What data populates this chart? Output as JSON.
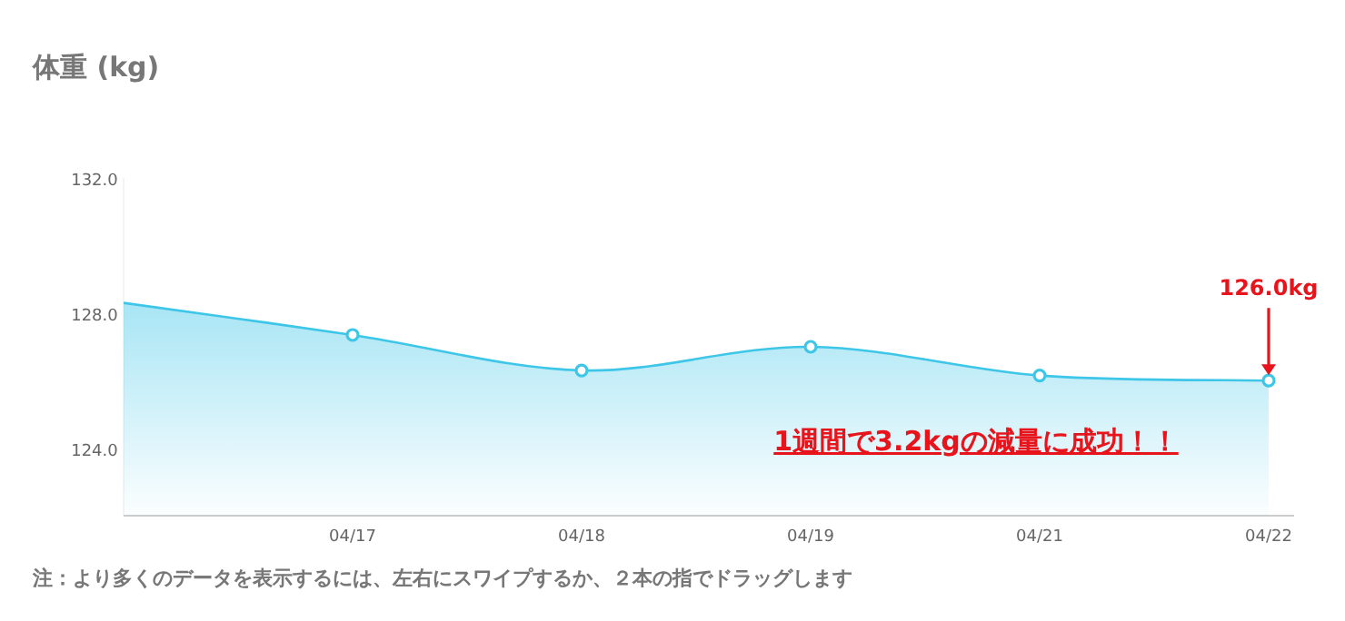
{
  "chart_data": {
    "type": "area",
    "title": "体重 (kg)",
    "categories": [
      null,
      "04/17",
      "04/18",
      "04/19",
      "04/21",
      "04/22"
    ],
    "series": [
      {
        "color": "#3ec6e8",
        "values": [
          128.3,
          127.35,
          126.3,
          127.0,
          126.15,
          126.0
        ]
      }
    ],
    "ylim": [
      122,
      132
    ],
    "yticks": [
      {
        "value": 124,
        "label": "124.0"
      },
      {
        "value": 128,
        "label": "128.0"
      },
      {
        "value": 132,
        "label": "132.0"
      }
    ],
    "marker": "circle",
    "grid": false,
    "annotations": [
      "126.0kg",
      "1週間で3.2kgの減量に成功！！",
      "注：より多くのデータを表示するには、左右にスワイプするか、２本の指でドラッグします"
    ]
  }
}
